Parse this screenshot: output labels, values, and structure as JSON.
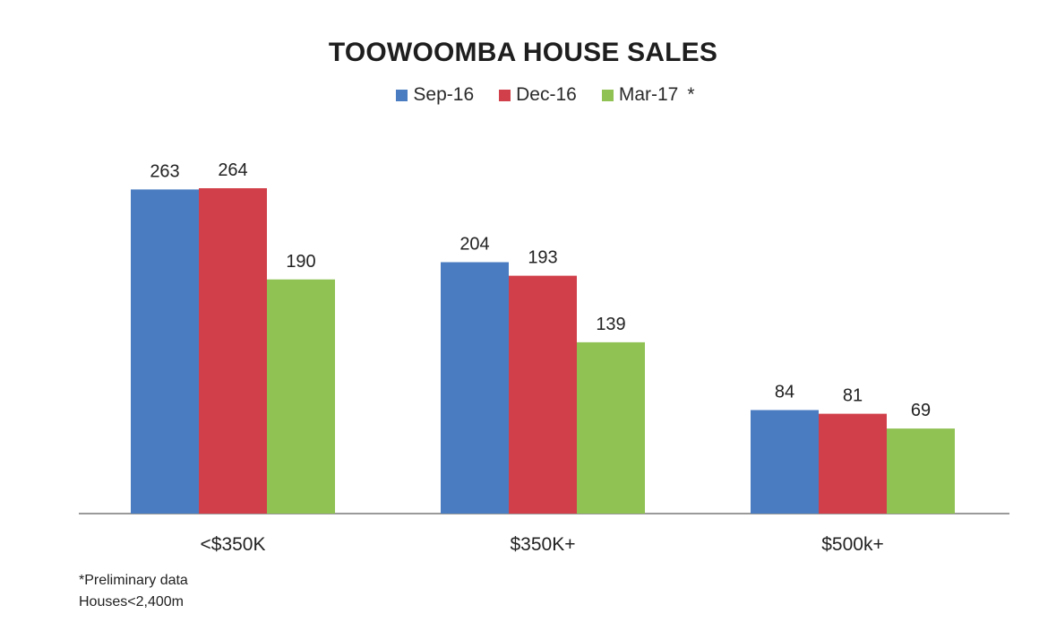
{
  "chart_data": {
    "type": "bar",
    "title": "TOOWOOMBA HOUSE SALES",
    "categories": [
      "<$350K",
      "$350K+",
      "$500k+"
    ],
    "series": [
      {
        "name": "Sep-16",
        "color": "#4a7cc1",
        "values": [
          263,
          204,
          84
        ]
      },
      {
        "name": "Dec-16",
        "color": "#d1404a",
        "values": [
          264,
          193,
          81
        ]
      },
      {
        "name": "Mar-17",
        "color": "#8fc153",
        "values": [
          190,
          139,
          69
        ]
      }
    ],
    "legend_marker": "*",
    "ylim": [
      0,
      264
    ],
    "grid": false,
    "legend_position": "top-center",
    "xlabel": "",
    "ylabel": ""
  },
  "footnotes": [
    "*Preliminary data",
    "Houses<2,400m"
  ]
}
